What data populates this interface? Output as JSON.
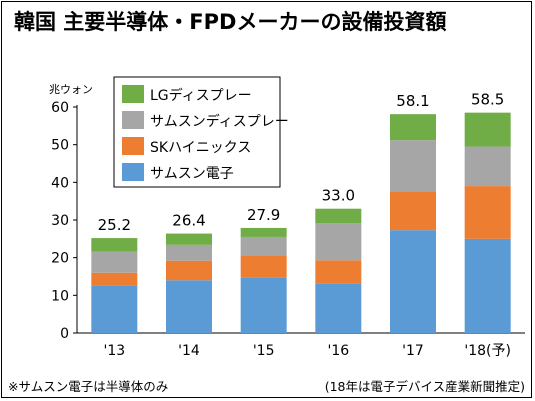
{
  "title": "韓国 主要半導体・FPDメーカーの設備投資額",
  "footnote_left": "※サムスン電子は半導体のみ",
  "footnote_right": "(18年は電子デバイス産業新聞推定)",
  "chart_data": {
    "type": "bar",
    "stacked": true,
    "ylabel": "兆ウォン",
    "xlabel": "",
    "ylim": [
      0,
      60
    ],
    "yticks": [
      0,
      10,
      20,
      30,
      40,
      50,
      60
    ],
    "grid": false,
    "legend_position": "top-left",
    "categories": [
      "'13",
      "'14",
      "'15",
      "'16",
      "'17",
      "'18(予)"
    ],
    "totals": [
      "25.2",
      "26.4",
      "27.9",
      "33.0",
      "58.1",
      "58.5"
    ],
    "series": [
      {
        "name": "サムスン電子",
        "color": "#5b9bd5",
        "values": [
          12.5,
          14.0,
          14.7,
          13.2,
          27.3,
          25.0
        ]
      },
      {
        "name": "SKハイニックス",
        "color": "#ed7d31",
        "values": [
          3.5,
          5.2,
          5.9,
          6.1,
          10.3,
          14.0
        ]
      },
      {
        "name": "サムスンディスプレー",
        "color": "#a6a6a6",
        "values": [
          5.6,
          4.2,
          4.9,
          9.9,
          13.6,
          10.5
        ]
      },
      {
        "name": "LGディスプレー",
        "color": "#70ad47",
        "values": [
          3.6,
          3.0,
          2.4,
          3.8,
          6.9,
          9.0
        ]
      }
    ],
    "legend_order": [
      "LGディスプレー",
      "サムスンディスプレー",
      "SKハイニックス",
      "サムスン電子"
    ]
  }
}
